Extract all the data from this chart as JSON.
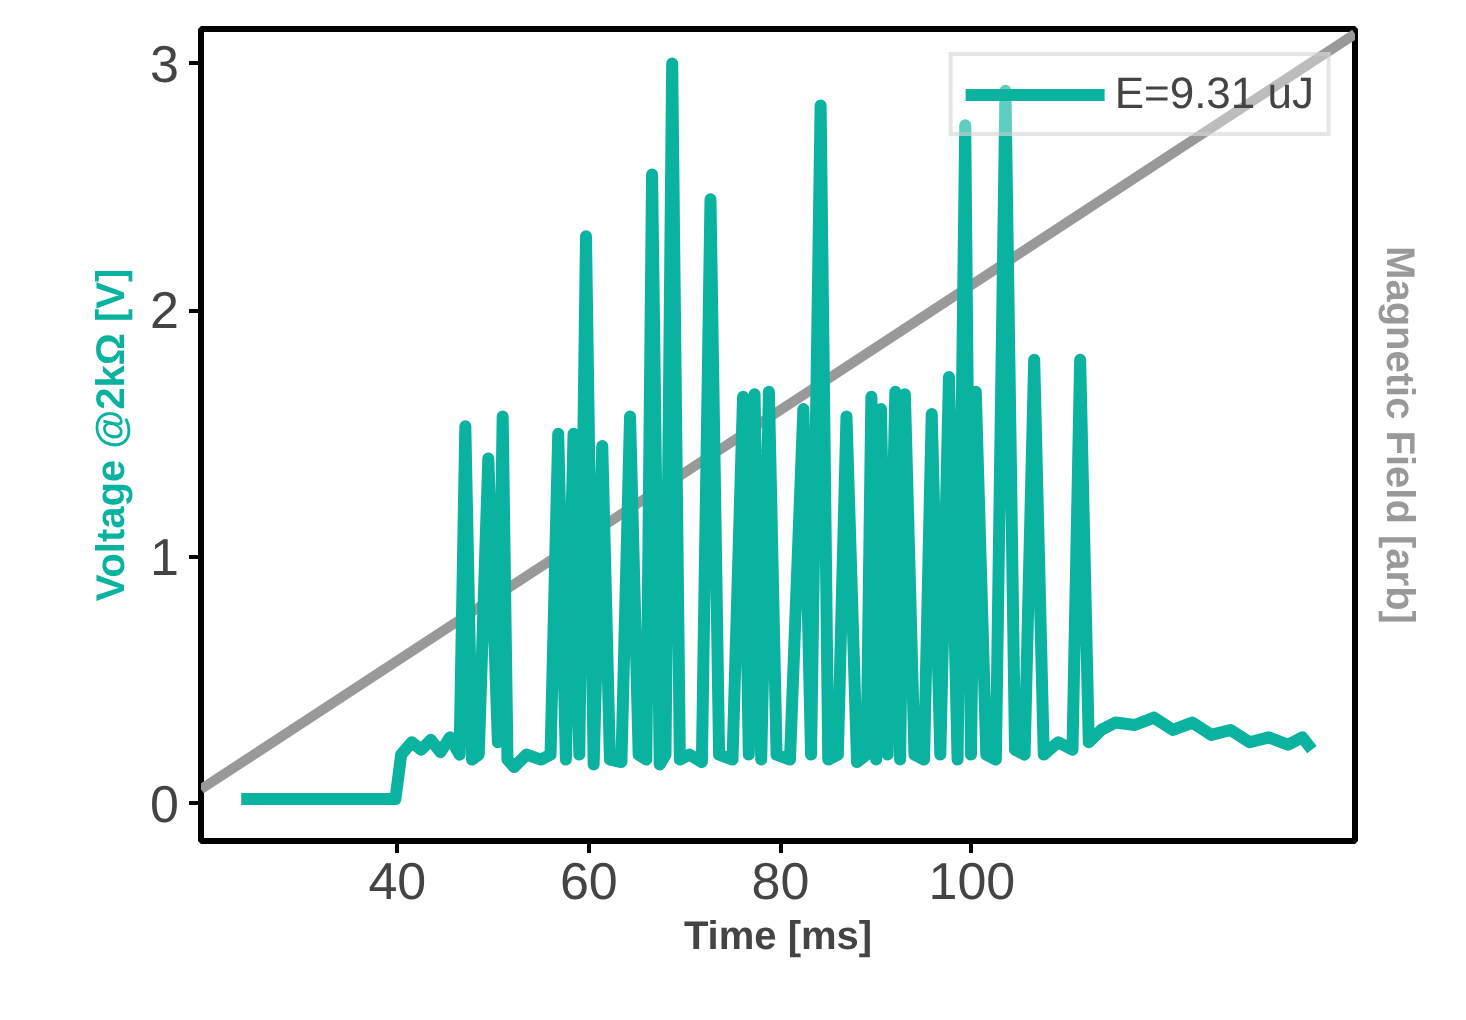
{
  "chart_data": {
    "type": "line",
    "xlabel": "Time [ms]",
    "ylabel": "Voltage @2kΩ [V]",
    "y2label": "Magnetic Field [arb]",
    "xlim": [
      19.5,
      140
    ],
    "xticks": [
      40,
      60,
      80,
      100
    ],
    "ylim": [
      -0.15,
      3.14
    ],
    "yticks": [
      0,
      1,
      2,
      3
    ],
    "grid": false,
    "legend": "top right",
    "line_style": "solid",
    "marker": "none",
    "series": [
      {
        "color": "#999999",
        "x": [
          19.5,
          140
        ],
        "values": [
          0.06,
          3.12
        ]
      },
      {
        "name": "E=9.31 uJ",
        "color": "#0ab3a0",
        "x": [
          23.7,
          39.8,
          40.4,
          41.5,
          42.5,
          43.5,
          44.5,
          45.5,
          46.5,
          47.1,
          47.8,
          48.5,
          49.5,
          50.5,
          51.0,
          51.5,
          52.2,
          53.5,
          55.0,
          56.0,
          56.8,
          57.6,
          58.4,
          59.0,
          59.7,
          60.5,
          61.4,
          62.2,
          63.4,
          64.3,
          65.2,
          66.0,
          66.6,
          67.4,
          68.0,
          68.7,
          69.5,
          70.5,
          71.8,
          72.7,
          73.6,
          75.0,
          76.1,
          76.7,
          77.3,
          78.0,
          78.8,
          79.6,
          81.0,
          82.4,
          83.2,
          84.2,
          85.0,
          86.0,
          86.9,
          88.0,
          89.0,
          89.5,
          90.0,
          90.5,
          91.2,
          92.0,
          92.5,
          93.0,
          94.0,
          95.0,
          95.8,
          96.7,
          97.6,
          98.5,
          99.3,
          99.9,
          100.4,
          101.5,
          102.5,
          103.5,
          104.5,
          105.5,
          106.5,
          107.5,
          109.0,
          110.5,
          111.3,
          112.2,
          113.5,
          115.0,
          117.0,
          119.0,
          121.0,
          123.0,
          125.0,
          127.0,
          129.0,
          131.0,
          133.0,
          134.5,
          135.5
        ],
        "values": [
          0.02,
          0.02,
          0.2,
          0.25,
          0.22,
          0.26,
          0.21,
          0.27,
          0.2,
          1.53,
          0.18,
          0.2,
          1.4,
          0.25,
          1.57,
          0.18,
          0.15,
          0.2,
          0.18,
          0.2,
          1.5,
          0.18,
          1.5,
          0.2,
          2.3,
          0.16,
          1.45,
          0.18,
          0.17,
          1.57,
          0.2,
          0.18,
          2.55,
          0.16,
          0.2,
          3.0,
          0.18,
          0.2,
          0.17,
          2.45,
          0.2,
          0.18,
          1.65,
          0.2,
          1.66,
          0.18,
          1.67,
          0.2,
          0.18,
          1.6,
          0.2,
          2.83,
          0.18,
          0.2,
          1.57,
          0.17,
          0.2,
          1.65,
          0.18,
          1.6,
          0.2,
          1.67,
          0.18,
          1.66,
          0.2,
          0.18,
          1.58,
          0.2,
          1.73,
          0.18,
          2.75,
          0.2,
          1.67,
          0.2,
          0.18,
          2.89,
          0.22,
          0.2,
          1.8,
          0.2,
          0.25,
          0.22,
          1.8,
          0.25,
          0.3,
          0.33,
          0.32,
          0.35,
          0.3,
          0.33,
          0.28,
          0.3,
          0.25,
          0.27,
          0.24,
          0.27,
          0.22
        ]
      }
    ]
  }
}
